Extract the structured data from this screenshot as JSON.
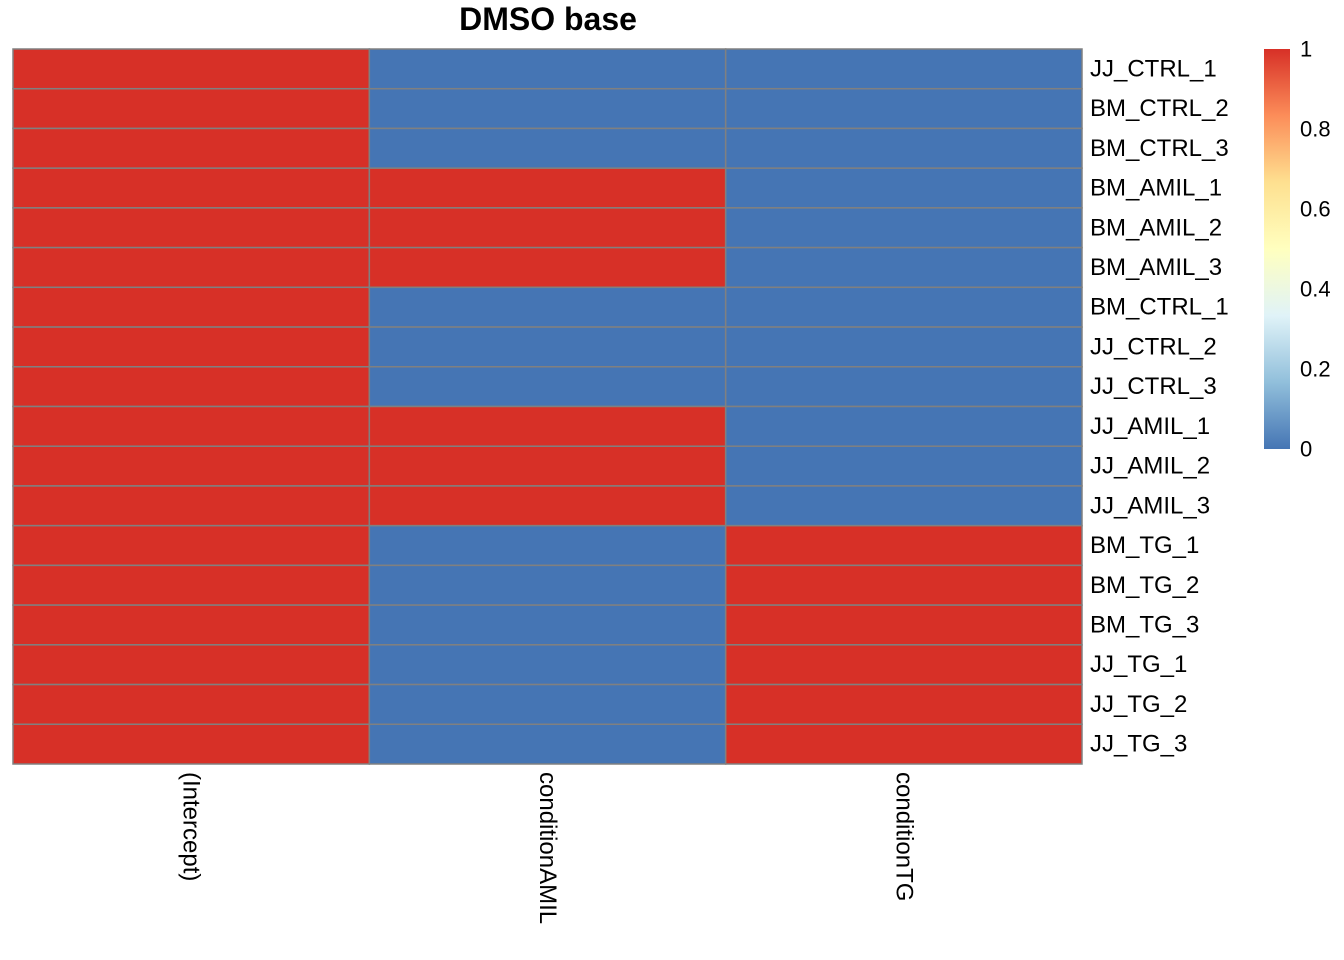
{
  "chart_data": {
    "type": "heatmap",
    "title": "DMSO base",
    "columns": [
      "(Intercept)",
      "conditionAMIL",
      "conditionTG"
    ],
    "rows": [
      "JJ_CTRL_1",
      "BM_CTRL_2",
      "BM_CTRL_3",
      "BM_AMIL_1",
      "BM_AMIL_2",
      "BM_AMIL_3",
      "BM_CTRL_1",
      "JJ_CTRL_2",
      "JJ_CTRL_3",
      "JJ_AMIL_1",
      "JJ_AMIL_2",
      "JJ_AMIL_3",
      "BM_TG_1",
      "BM_TG_2",
      "BM_TG_3",
      "JJ_TG_1",
      "JJ_TG_2",
      "JJ_TG_3"
    ],
    "values": [
      [
        1,
        0,
        0
      ],
      [
        1,
        0,
        0
      ],
      [
        1,
        0,
        0
      ],
      [
        1,
        1,
        0
      ],
      [
        1,
        1,
        0
      ],
      [
        1,
        1,
        0
      ],
      [
        1,
        0,
        0
      ],
      [
        1,
        0,
        0
      ],
      [
        1,
        0,
        0
      ],
      [
        1,
        1,
        0
      ],
      [
        1,
        1,
        0
      ],
      [
        1,
        1,
        0
      ],
      [
        1,
        0,
        1
      ],
      [
        1,
        0,
        1
      ],
      [
        1,
        0,
        1
      ],
      [
        1,
        0,
        1
      ],
      [
        1,
        0,
        1
      ],
      [
        1,
        0,
        1
      ]
    ],
    "color_scale": {
      "range": [
        0,
        1
      ],
      "stops": [
        "#4575B4",
        "#91BFDB",
        "#E0F3F8",
        "#FFFFBF",
        "#FEE090",
        "#FC8D59",
        "#D73027"
      ],
      "ticks": [
        "0",
        "0.2",
        "0.4",
        "0.6",
        "0.8",
        "1"
      ],
      "tick_values": [
        0,
        0.2,
        0.4,
        0.6,
        0.8,
        1
      ]
    },
    "cell_border_color": "#808080",
    "legend_position": "right"
  }
}
